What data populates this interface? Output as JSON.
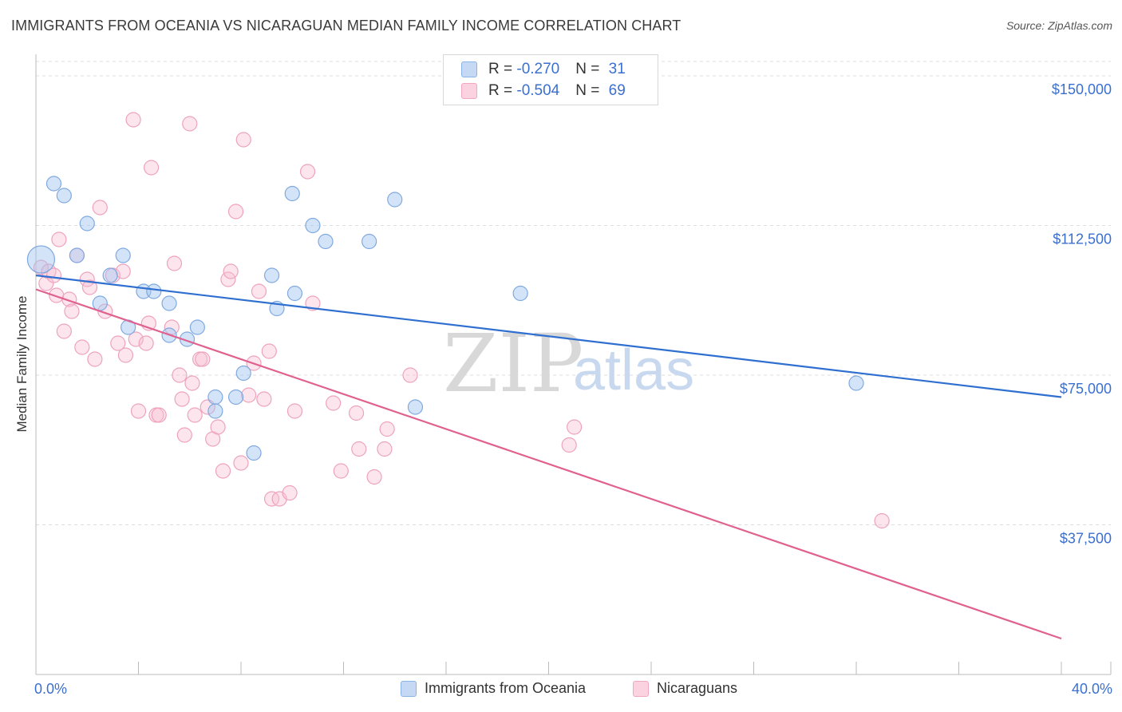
{
  "title": "IMMIGRANTS FROM OCEANIA VS NICARAGUAN MEDIAN FAMILY INCOME CORRELATION CHART",
  "source": "Source: ZipAtlas.com",
  "chart_data": {
    "type": "scatter",
    "xlabel": "",
    "ylabel": "Median Family Income",
    "xlim": [
      0,
      40
    ],
    "ylim": [
      0,
      155000
    ],
    "x_tick_labels": [
      "0.0%",
      "40.0%"
    ],
    "y_ticks": [
      37500,
      75000,
      112500,
      150000
    ],
    "y_tick_labels": [
      "$37,500",
      "$75,000",
      "$112,500",
      "$150,000"
    ],
    "watermark": "ZIPatlas",
    "series": [
      {
        "name": "Immigrants from Oceania",
        "color": "#8ab4e8",
        "line_color": "#2f6fd0",
        "R": "-0.270",
        "N": "31",
        "trend": {
          "x": [
            0,
            40
          ],
          "y": [
            100000,
            69500
          ]
        },
        "points": [
          [
            0.2,
            104000
          ],
          [
            0.7,
            123000
          ],
          [
            1.1,
            120000
          ],
          [
            1.6,
            105000
          ],
          [
            2.0,
            113000
          ],
          [
            2.5,
            93000
          ],
          [
            2.9,
            100000
          ],
          [
            3.4,
            105000
          ],
          [
            3.6,
            87000
          ],
          [
            4.2,
            96000
          ],
          [
            4.6,
            96000
          ],
          [
            5.2,
            93000
          ],
          [
            5.2,
            85000
          ],
          [
            5.9,
            84000
          ],
          [
            6.3,
            87000
          ],
          [
            7.0,
            69500
          ],
          [
            7.0,
            66000
          ],
          [
            7.8,
            69500
          ],
          [
            8.1,
            75500
          ],
          [
            8.5,
            55500
          ],
          [
            9.2,
            100000
          ],
          [
            9.4,
            91700
          ],
          [
            10.0,
            120500
          ],
          [
            10.1,
            95500
          ],
          [
            10.8,
            112500
          ],
          [
            11.3,
            108500
          ],
          [
            13.0,
            108500
          ],
          [
            14.0,
            119000
          ],
          [
            14.8,
            67000
          ],
          [
            18.9,
            95500
          ],
          [
            32.0,
            73000
          ]
        ]
      },
      {
        "name": "Nicaraguans",
        "color": "#f3a6bf",
        "line_color": "#e0608e",
        "R": "-0.504",
        "N": "69",
        "trend": {
          "x": [
            0,
            40
          ],
          "y": [
            96500,
            9000
          ]
        },
        "points": [
          [
            0.2,
            102000
          ],
          [
            0.4,
            98000
          ],
          [
            0.5,
            101000
          ],
          [
            0.7,
            100000
          ],
          [
            0.8,
            95000
          ],
          [
            0.9,
            109000
          ],
          [
            1.1,
            86000
          ],
          [
            1.3,
            94000
          ],
          [
            1.4,
            91000
          ],
          [
            1.6,
            105000
          ],
          [
            1.8,
            82000
          ],
          [
            2.0,
            99000
          ],
          [
            2.1,
            97000
          ],
          [
            2.3,
            79000
          ],
          [
            2.5,
            117000
          ],
          [
            2.7,
            91000
          ],
          [
            3.0,
            100000
          ],
          [
            3.2,
            83000
          ],
          [
            3.4,
            101000
          ],
          [
            3.5,
            80000
          ],
          [
            3.8,
            139000
          ],
          [
            3.9,
            84000
          ],
          [
            4.0,
            66000
          ],
          [
            4.3,
            83000
          ],
          [
            4.4,
            88000
          ],
          [
            4.5,
            127000
          ],
          [
            4.7,
            65000
          ],
          [
            4.8,
            65000
          ],
          [
            5.3,
            87000
          ],
          [
            5.4,
            103000
          ],
          [
            5.6,
            75000
          ],
          [
            5.7,
            69000
          ],
          [
            5.8,
            60000
          ],
          [
            6.0,
            138000
          ],
          [
            6.1,
            73000
          ],
          [
            6.2,
            65000
          ],
          [
            6.4,
            79000
          ],
          [
            6.5,
            79000
          ],
          [
            6.7,
            67000
          ],
          [
            6.9,
            59000
          ],
          [
            7.1,
            62000
          ],
          [
            7.3,
            51000
          ],
          [
            7.5,
            99000
          ],
          [
            7.6,
            101000
          ],
          [
            7.8,
            116000
          ],
          [
            8.0,
            53000
          ],
          [
            8.1,
            134000
          ],
          [
            8.3,
            70000
          ],
          [
            8.5,
            78000
          ],
          [
            8.7,
            96000
          ],
          [
            8.9,
            69000
          ],
          [
            9.1,
            81000
          ],
          [
            9.2,
            44000
          ],
          [
            9.5,
            44000
          ],
          [
            9.9,
            45500
          ],
          [
            10.1,
            66000
          ],
          [
            10.6,
            126000
          ],
          [
            10.8,
            93000
          ],
          [
            11.6,
            68000
          ],
          [
            11.9,
            51000
          ],
          [
            12.5,
            65500
          ],
          [
            12.6,
            56500
          ],
          [
            13.2,
            49500
          ],
          [
            13.6,
            56500
          ],
          [
            13.7,
            61500
          ],
          [
            14.6,
            75000
          ],
          [
            20.8,
            57500
          ],
          [
            21.0,
            62000
          ],
          [
            33.0,
            38500
          ]
        ]
      }
    ]
  }
}
